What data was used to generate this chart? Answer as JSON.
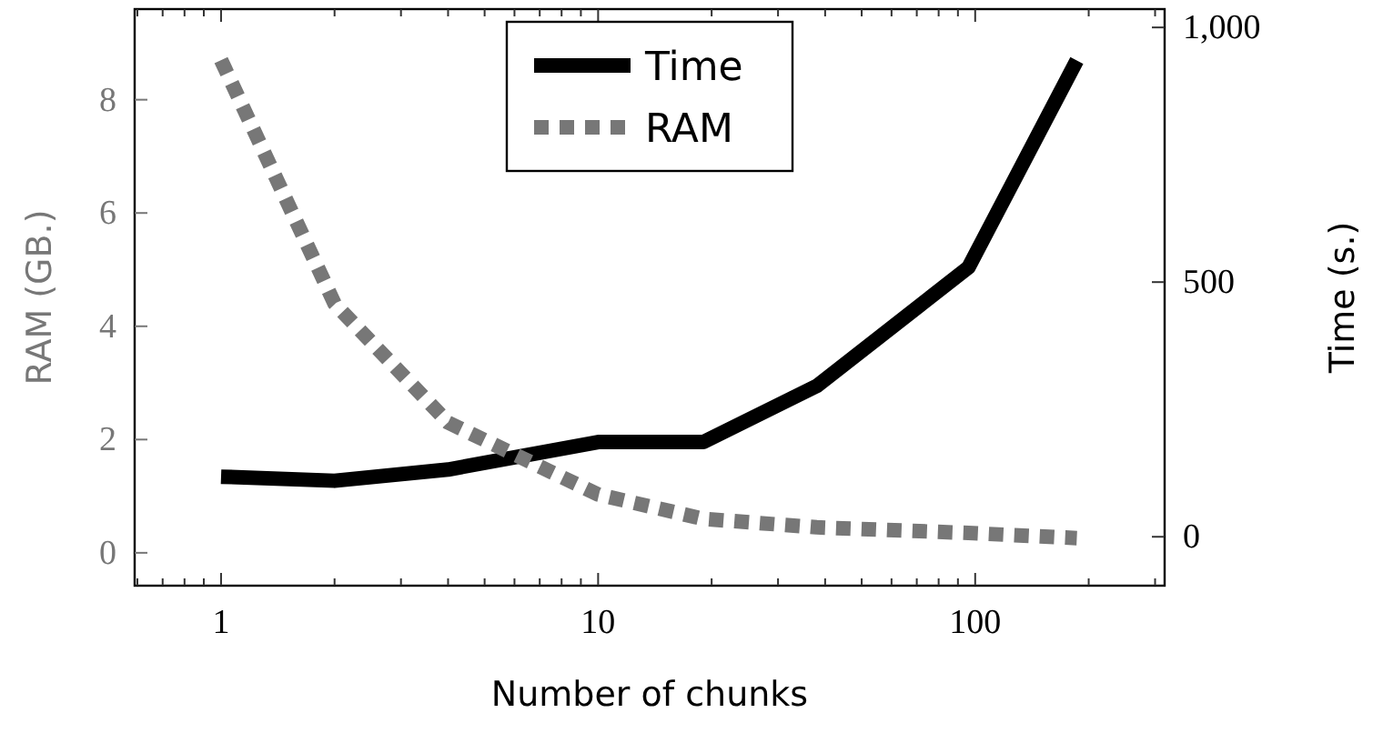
{
  "chart_data": {
    "type": "line",
    "xlabel": "Number of chunks",
    "ylabel": "RAM (GB.)",
    "y2label": "Time (s.)",
    "x": [
      1,
      2,
      4,
      10,
      19,
      38,
      96,
      186
    ],
    "log": "x",
    "xlim": [
      0.59,
      318
    ],
    "xticks": [
      {
        "value": 0.6,
        "label": null
      },
      {
        "value": 0.7,
        "label": null
      },
      {
        "value": 0.8,
        "label": null
      },
      {
        "value": 0.9,
        "label": null
      },
      1,
      {
        "value": 2,
        "label": null
      },
      {
        "value": 3,
        "label": null
      },
      {
        "value": 4,
        "label": null
      },
      {
        "value": 5,
        "label": null
      },
      {
        "value": 6,
        "label": null
      },
      {
        "value": 7,
        "label": null
      },
      {
        "value": 8,
        "label": null
      },
      {
        "value": 9,
        "label": null
      },
      10,
      {
        "value": 20,
        "label": null
      },
      {
        "value": 30,
        "label": null
      },
      {
        "value": 40,
        "label": null
      },
      {
        "value": 50,
        "label": null
      },
      {
        "value": 60,
        "label": null
      },
      {
        "value": 70,
        "label": null
      },
      {
        "value": 80,
        "label": null
      },
      {
        "value": 90,
        "label": null
      },
      100,
      {
        "value": 200,
        "label": null
      },
      {
        "value": 300,
        "label": null
      }
    ],
    "ylim": [
      -0.58,
      9.6
    ],
    "yticks": [
      0,
      2,
      4,
      6,
      8
    ],
    "y2lim": [
      -96,
      1036
    ],
    "y2ticks": [
      0,
      500,
      {
        "value": 1000,
        "label": "1,000"
      }
    ],
    "legend": "top",
    "series": [
      {
        "name": "Time",
        "color": "#000000",
        "axis": "y2",
        "line_style": "solid",
        "values": [
          118,
          110,
          132,
          186,
          186,
          296,
          529,
          935
        ]
      },
      {
        "name": "RAM",
        "color": "#777777",
        "axis": "y",
        "line_style": "dashed",
        "values": [
          8.7,
          4.4,
          2.3,
          1.03,
          0.6,
          0.45,
          0.35,
          0.26
        ]
      }
    ]
  }
}
